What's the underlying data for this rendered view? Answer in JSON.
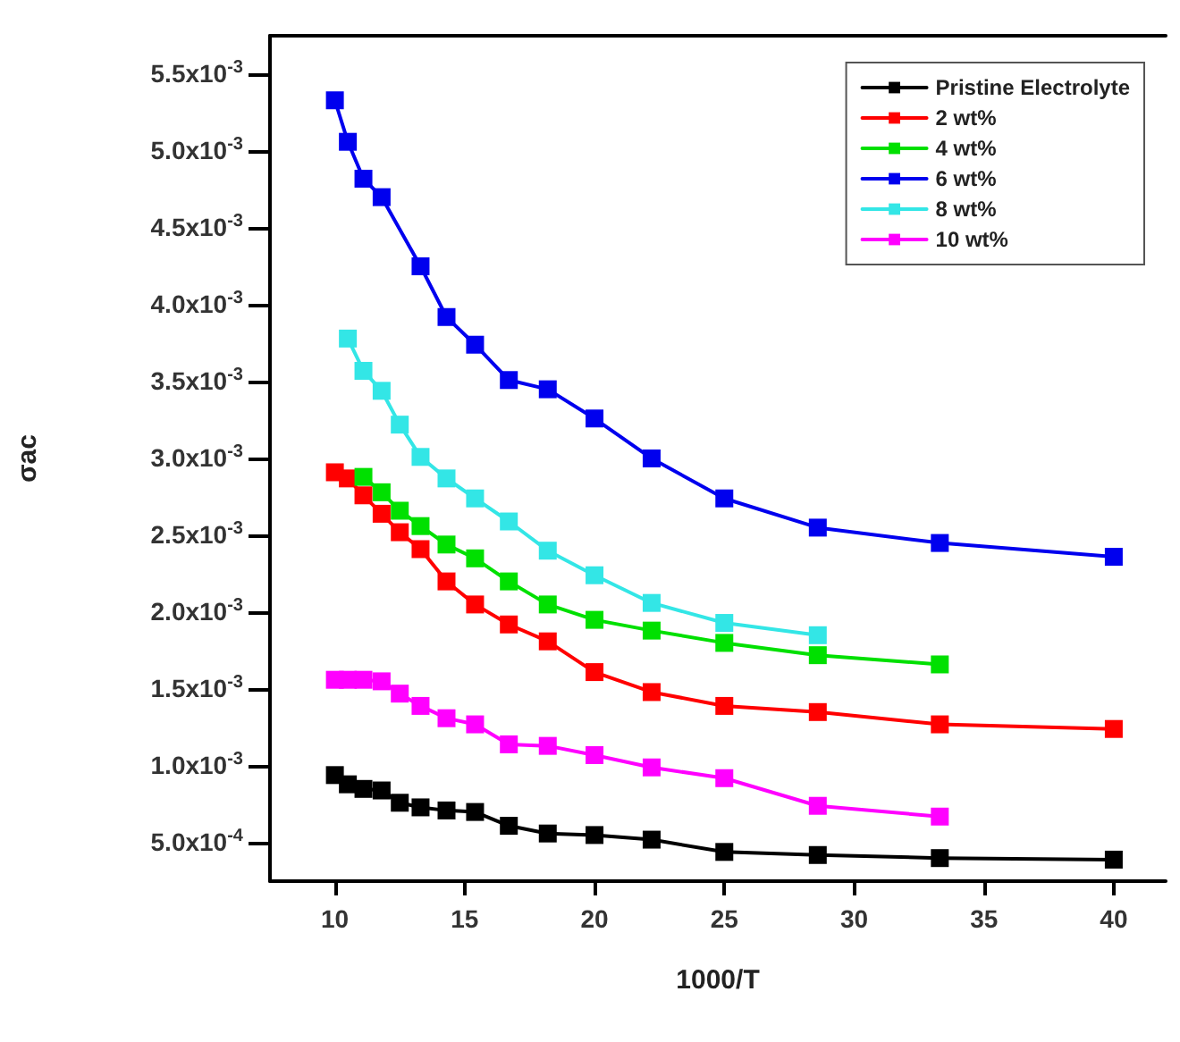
{
  "chart_data": {
    "type": "line",
    "xlabel": "1000/T",
    "ylabel": "σac",
    "marker": "square",
    "line_style": "solid",
    "legend": "top right",
    "grid": false,
    "xlim": [
      7.5,
      42
    ],
    "xticks": [
      10,
      15,
      20,
      25,
      30,
      35,
      40
    ],
    "ylim": [
      0.00025,
      0.00575
    ],
    "yticks": [
      {
        "value": 0.0005,
        "label": "5.0x10$^{-4}$"
      },
      {
        "value": 0.001,
        "label": "1.0x10$^{-3}$"
      },
      {
        "value": 0.0015,
        "label": "1.5x10$^{-3}$"
      },
      {
        "value": 0.002,
        "label": "2.0x10$^{-3}$"
      },
      {
        "value": 0.0025,
        "label": "2.5x10$^{-3}$"
      },
      {
        "value": 0.003,
        "label": "3.0x10$^{-3}$"
      },
      {
        "value": 0.0035,
        "label": "3.5x10$^{-3}$"
      },
      {
        "value": 0.004,
        "label": "4.0x10$^{-3}$"
      },
      {
        "value": 0.0045,
        "label": "4.5x10$^{-3}$"
      },
      {
        "value": 0.005,
        "label": "5.0x10$^{-3}$"
      },
      {
        "value": 0.0055,
        "label": "5.5x10$^{-3}$"
      }
    ],
    "series": [
      {
        "name": "Pristine Electrolyte",
        "color": "#000000",
        "x": [
          10,
          10.5,
          11.1,
          11.8,
          12.5,
          13.3,
          14.3,
          15.4,
          16.7,
          18.2,
          20,
          22.2,
          25,
          28.6,
          33.3,
          40
        ],
        "values": [
          0.00094,
          0.00088,
          0.00085,
          0.00084,
          0.00076,
          0.00073,
          0.00071,
          0.0007,
          0.00061,
          0.00056,
          0.00055,
          0.00052,
          0.00044,
          0.00042,
          0.0004,
          0.00039
        ]
      },
      {
        "name": "2 wt%",
        "color": "#ff0000",
        "x": [
          10,
          10.5,
          11.1,
          11.8,
          12.5,
          13.3,
          14.3,
          15.4,
          16.7,
          18.2,
          20,
          22.2,
          25,
          28.6,
          33.3,
          40
        ],
        "values": [
          0.00291,
          0.00287,
          0.00276,
          0.00264,
          0.00252,
          0.00241,
          0.0022,
          0.00205,
          0.00192,
          0.00181,
          0.00161,
          0.00148,
          0.00139,
          0.00135,
          0.00127,
          0.00124
        ]
      },
      {
        "name": "4 wt%",
        "color": "#00e000",
        "x": [
          11.1,
          11.8,
          12.5,
          13.3,
          14.3,
          15.4,
          16.7,
          18.2,
          20,
          22.2,
          25,
          28.6,
          33.3
        ],
        "values": [
          0.00288,
          0.00278,
          0.00266,
          0.00256,
          0.00244,
          0.00235,
          0.0022,
          0.00205,
          0.00195,
          0.00188,
          0.0018,
          0.00172,
          0.00166
        ]
      },
      {
        "name": "6 wt%",
        "color": "#0000ee",
        "x": [
          10,
          10.5,
          11.1,
          11.8,
          13.3,
          14.3,
          15.4,
          16.7,
          18.2,
          20,
          22.2,
          25,
          28.6,
          33.3,
          40
        ],
        "values": [
          0.00533,
          0.00506,
          0.00482,
          0.0047,
          0.00425,
          0.00392,
          0.00374,
          0.00351,
          0.00345,
          0.00326,
          0.003,
          0.00274,
          0.00255,
          0.00245,
          0.00236
        ]
      },
      {
        "name": "8 wt%",
        "color": "#33e6e6",
        "x": [
          10.5,
          11.1,
          11.8,
          12.5,
          13.3,
          14.3,
          15.4,
          16.7,
          18.2,
          20,
          22.2,
          25,
          28.6
        ],
        "values": [
          0.00378,
          0.00357,
          0.00344,
          0.00322,
          0.00301,
          0.00287,
          0.00274,
          0.00259,
          0.0024,
          0.00224,
          0.00206,
          0.00193,
          0.00185
        ]
      },
      {
        "name": "10 wt%",
        "color": "#ff00ff",
        "x": [
          10,
          10.5,
          11.1,
          11.8,
          12.5,
          13.3,
          14.3,
          15.4,
          16.7,
          18.2,
          20,
          22.2,
          25,
          28.6,
          33.3
        ],
        "values": [
          0.00156,
          0.00156,
          0.00156,
          0.00155,
          0.00147,
          0.00139,
          0.00131,
          0.00127,
          0.00114,
          0.00113,
          0.00107,
          0.00099,
          0.00092,
          0.00074,
          0.00067
        ]
      }
    ]
  }
}
